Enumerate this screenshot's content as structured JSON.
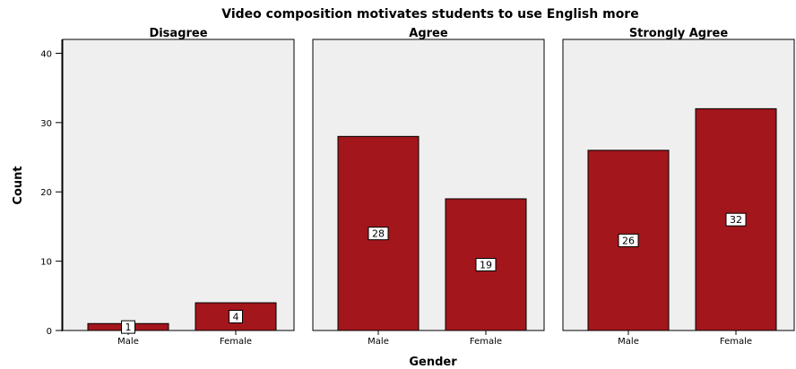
{
  "chart_data": {
    "type": "bar",
    "title": "Video composition motivates students to use English more",
    "xlabel": "Gender",
    "ylabel": "Count",
    "ylim": [
      0,
      42
    ],
    "yticks": [
      0,
      10,
      20,
      30,
      40
    ],
    "categories": [
      "Male",
      "Female"
    ],
    "bar_color": "#a3161c",
    "panel_background": "#efefef",
    "grid": false,
    "panels": [
      {
        "name": "Disagree",
        "values": [
          1,
          4
        ]
      },
      {
        "name": "Agree",
        "values": [
          28,
          19
        ]
      },
      {
        "name": "Strongly Agree",
        "values": [
          26,
          32
        ]
      }
    ]
  }
}
